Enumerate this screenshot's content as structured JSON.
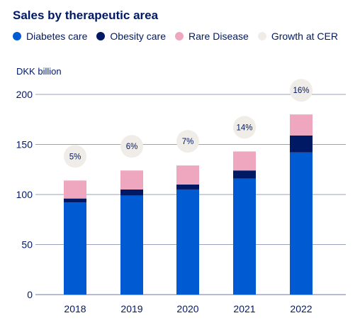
{
  "title": "Sales by therapeutic area",
  "legend": [
    {
      "label": "Diabetes care",
      "color": "#005ad2"
    },
    {
      "label": "Obesity care",
      "color": "#001965"
    },
    {
      "label": "Rare Disease",
      "color": "#eea7bf"
    },
    {
      "label": "Growth at CER",
      "color": "#f0ede9"
    }
  ],
  "chart_data": {
    "type": "bar",
    "stacked": true,
    "title": "Sales by therapeutic area",
    "ylabel": "DKK billion",
    "xlabel": "",
    "ylim": [
      0,
      200
    ],
    "yticks": [
      0,
      50,
      100,
      150,
      200
    ],
    "grid": true,
    "legend_position": "top-left",
    "categories": [
      "2018",
      "2019",
      "2020",
      "2021",
      "2022"
    ],
    "series": [
      {
        "name": "Diabetes care",
        "color": "#005ad2",
        "values": [
          92,
          99,
          105,
          116,
          142
        ]
      },
      {
        "name": "Obesity care",
        "color": "#001965",
        "values": [
          4,
          6,
          5,
          8,
          17
        ]
      },
      {
        "name": "Rare Disease",
        "color": "#eea7bf",
        "values": [
          18,
          19,
          19,
          19,
          21
        ]
      }
    ],
    "annotations": {
      "name": "Growth at CER",
      "color": "#f0ede9",
      "labels": [
        "5%",
        "6%",
        "7%",
        "14%",
        "16%"
      ]
    }
  }
}
